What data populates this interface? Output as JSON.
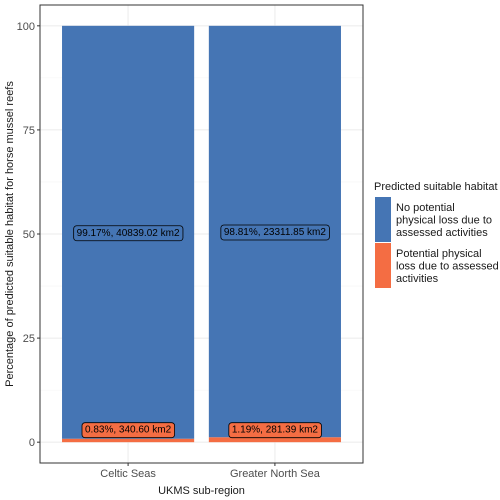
{
  "chart_data": {
    "type": "bar",
    "stacked": true,
    "categories": [
      "Celtic Seas",
      "Greater North Sea"
    ],
    "series": [
      {
        "name": "No potential physical loss due to assessed activities",
        "color": "#4575b4",
        "values": [
          99.17,
          98.81
        ],
        "labels": [
          "99.17%, 40839.02 km2",
          "98.81%, 23311.85 km2"
        ]
      },
      {
        "name": "Potential physical loss due to assessed activities",
        "color": "#f46d43",
        "values": [
          0.83,
          1.19
        ],
        "labels": [
          "0.83%,   340.60 km2",
          "1.19%,   281.39 km2"
        ]
      }
    ],
    "xlabel": "UKMS sub-region",
    "ylabel": "Percentage of predicted suitable habitat for horse mussel reefs",
    "ylim": [
      0,
      100
    ],
    "yticks": [
      0,
      25,
      50,
      75,
      100
    ],
    "grid": true,
    "legend": {
      "title": "Predicted suitable habitat",
      "position": "right",
      "entries": [
        [
          "No potential",
          "physical loss due to",
          "assessed activities"
        ],
        [
          "Potential physical",
          "loss due to assessed",
          "activities"
        ]
      ]
    }
  }
}
